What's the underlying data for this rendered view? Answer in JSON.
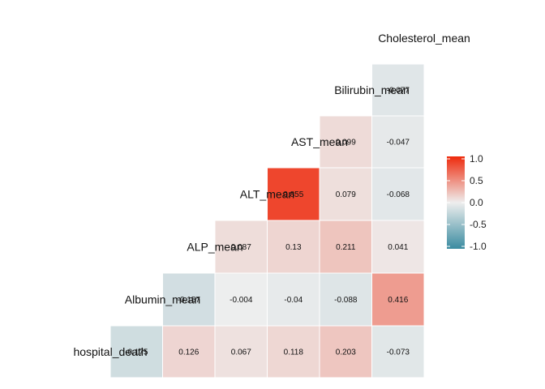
{
  "chart_data": {
    "type": "heatmap",
    "variables": [
      "hospital_death",
      "Albumin_mean",
      "ALP_mean",
      "ALT_mean",
      "AST_mean",
      "Bilirubin_mean",
      "Cholesterol_mean"
    ],
    "rows": [
      {
        "label": "Cholesterol_mean",
        "values": []
      },
      {
        "label": "Bilirubin_mean",
        "values": [
          -0.077
        ]
      },
      {
        "label": "AST_mean",
        "values": [
          0.099,
          -0.047
        ]
      },
      {
        "label": "ALT_mean",
        "values": [
          0.855,
          0.079,
          -0.068
        ]
      },
      {
        "label": "ALP_mean",
        "values": [
          0.087,
          0.13,
          0.211,
          0.041
        ]
      },
      {
        "label": "Albumin_mean",
        "values": [
          -0.157,
          -0.004,
          -0.04,
          -0.088,
          0.416
        ]
      },
      {
        "label": "hospital_death",
        "values": [
          -0.175,
          0.126,
          0.067,
          0.118,
          0.203,
          -0.073
        ]
      }
    ],
    "value_labels": [
      [],
      [
        "-0.077"
      ],
      [
        "0.099",
        "-0.047"
      ],
      [
        "0.855",
        "0.079",
        "-0.068"
      ],
      [
        "0.087",
        "0.13",
        "0.211",
        "0.041"
      ],
      [
        "-0.157",
        "-0.004",
        "-0.04",
        "-0.088",
        "0.416"
      ],
      [
        "-0.175",
        "0.126",
        "0.067",
        "0.118",
        "0.203",
        "-0.073"
      ]
    ],
    "color_scale": {
      "low": "#3A8BA0",
      "mid": "#EEEEEE",
      "high": "#EE2A0C",
      "range": [
        -1,
        1
      ]
    },
    "legend": {
      "position": "right",
      "ticks": [
        1.0,
        0.5,
        0.0,
        -0.5,
        -1.0
      ],
      "tick_labels": [
        "1.0",
        "0.5",
        "0.0",
        "-0.5",
        "-1.0"
      ]
    }
  }
}
